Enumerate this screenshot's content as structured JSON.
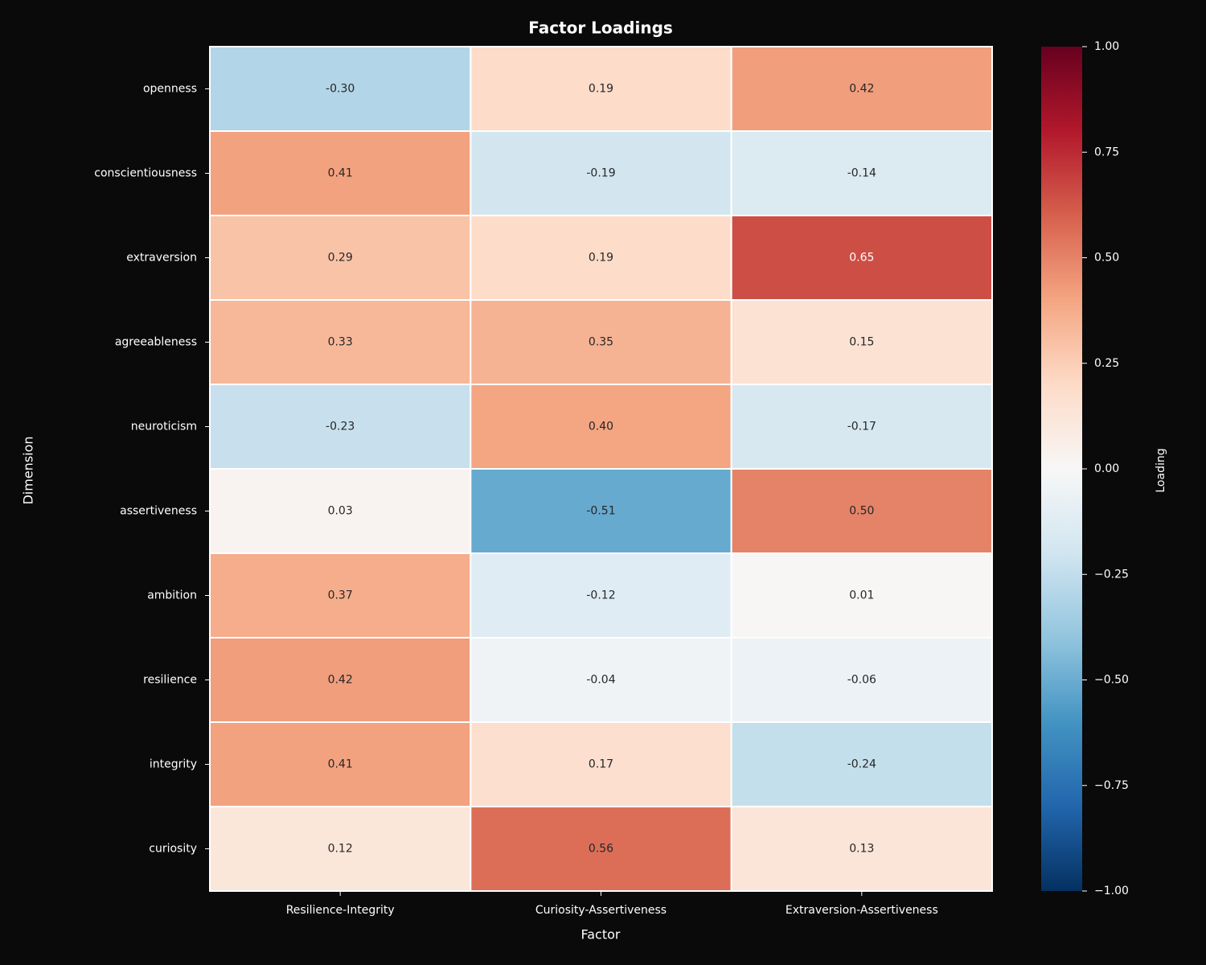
{
  "chart_data": {
    "type": "heatmap",
    "title": "Factor Loadings",
    "x_label": "Factor",
    "y_label": "Dimension",
    "x_categories": [
      "Resilience-Integrity",
      "Curiosity-Assertiveness",
      "Extraversion-Assertiveness"
    ],
    "y_categories": [
      "openness",
      "conscientiousness",
      "extraversion",
      "agreeableness",
      "neuroticism",
      "assertiveness",
      "ambition",
      "resilience",
      "integrity",
      "curiosity"
    ],
    "values": [
      [
        -0.3,
        0.19,
        0.42
      ],
      [
        0.41,
        -0.19,
        -0.14
      ],
      [
        0.29,
        0.19,
        0.65
      ],
      [
        0.33,
        0.35,
        0.15
      ],
      [
        -0.23,
        0.4,
        -0.17
      ],
      [
        0.03,
        -0.51,
        0.5
      ],
      [
        0.37,
        -0.12,
        0.01
      ],
      [
        0.42,
        -0.04,
        -0.06
      ],
      [
        0.41,
        0.17,
        -0.24
      ],
      [
        0.12,
        0.56,
        0.13
      ]
    ],
    "value_labels": [
      [
        "-0.30",
        "0.19",
        "0.42"
      ],
      [
        "0.41",
        "-0.19",
        "-0.14"
      ],
      [
        "0.29",
        "0.19",
        "0.65"
      ],
      [
        "0.33",
        "0.35",
        "0.15"
      ],
      [
        "-0.23",
        "0.40",
        "-0.17"
      ],
      [
        "0.03",
        "-0.51",
        "0.50"
      ],
      [
        "0.37",
        "-0.12",
        "0.01"
      ],
      [
        "0.42",
        "-0.04",
        "-0.06"
      ],
      [
        "0.41",
        "0.17",
        "-0.24"
      ],
      [
        "0.12",
        "0.56",
        "0.13"
      ]
    ],
    "colormap": "RdBu_r",
    "colorbar_label": "Loading",
    "clim": [
      -1,
      1
    ],
    "cticks": [
      {
        "value": -1,
        "label": "−1.00"
      },
      {
        "value": -0.75,
        "label": "−0.75"
      },
      {
        "value": -0.5,
        "label": "−0.50"
      },
      {
        "value": -0.25,
        "label": "−0.25"
      },
      {
        "value": 0,
        "label": "0.00"
      },
      {
        "value": 0.25,
        "label": "0.25"
      },
      {
        "value": 0.5,
        "label": "0.50"
      },
      {
        "value": 0.75,
        "label": "0.75"
      },
      {
        "value": 1,
        "label": "1.00"
      }
    ]
  }
}
